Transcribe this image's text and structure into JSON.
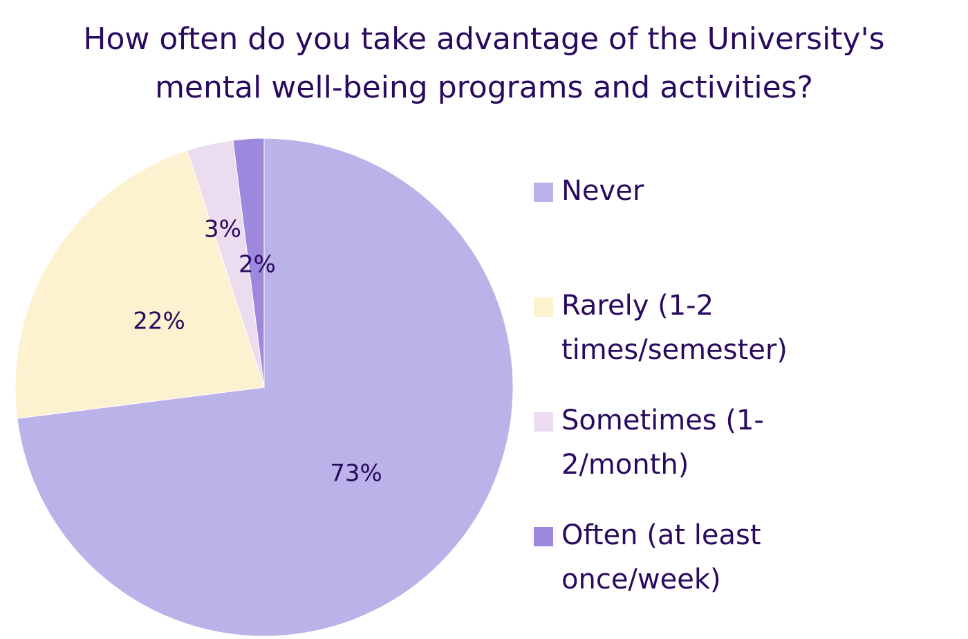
{
  "chart_data": {
    "type": "pie",
    "title_lines": [
      "How often do you take advantage of the University's",
      "mental well-being programs and activities?"
    ],
    "slices": [
      {
        "legend_lines": [
          "Never"
        ],
        "value": 73,
        "label": "73%",
        "color": "#bbb2ea"
      },
      {
        "legend_lines": [
          "Rarely (1-2",
          "times/semester)"
        ],
        "value": 22,
        "label": "22%",
        "color": "#fdf2d0"
      },
      {
        "legend_lines": [
          "Sometimes (1-",
          "2/month)"
        ],
        "value": 3,
        "label": "3%",
        "color": "#ebdcef"
      },
      {
        "legend_lines": [
          "Often (at least",
          "once/week)"
        ],
        "value": 2,
        "label": "2%",
        "color": "#9c88dc"
      }
    ],
    "legend_position": "right"
  },
  "colors": {
    "text": "#2a0a5e",
    "slice_border": "#ffffff"
  }
}
